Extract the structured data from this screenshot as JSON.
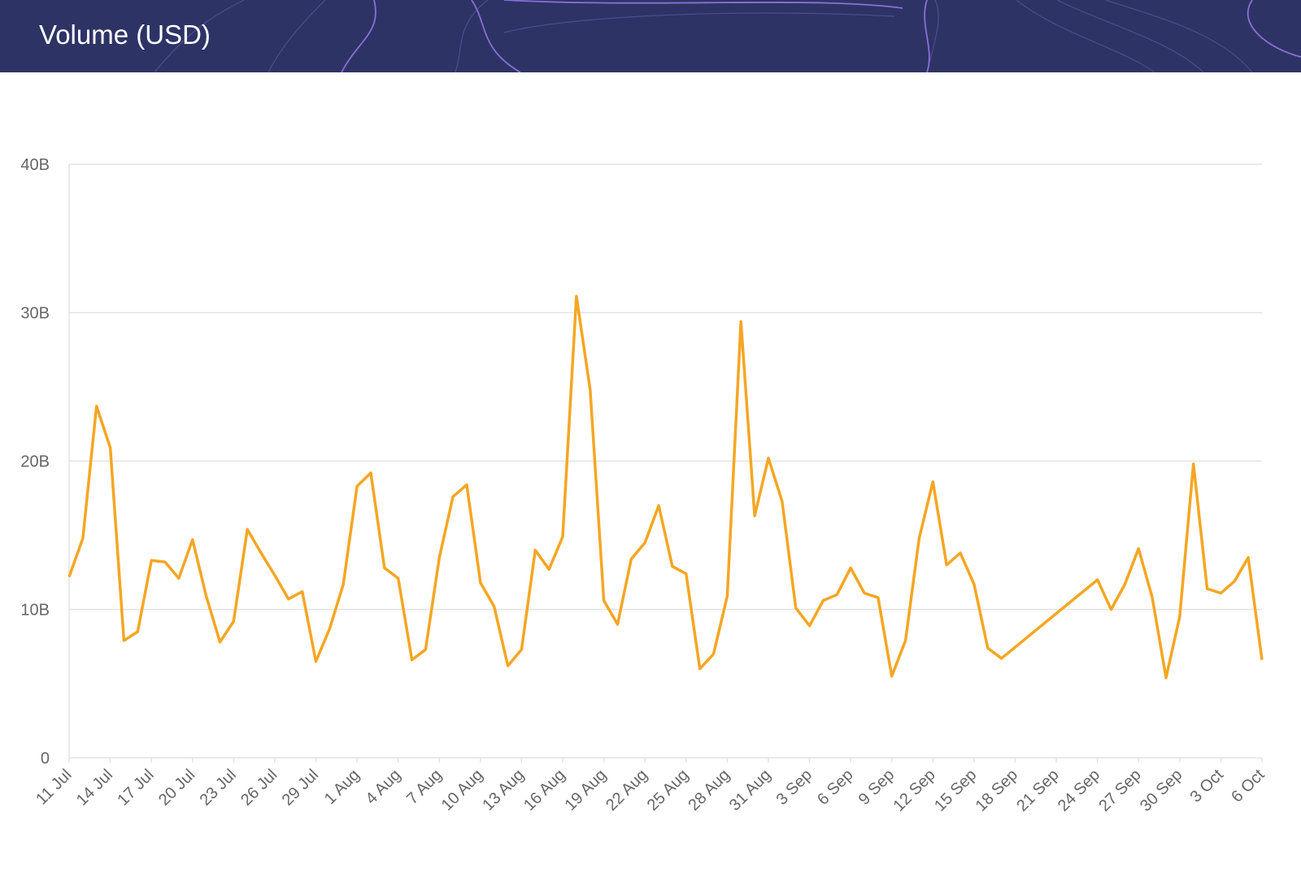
{
  "header": {
    "title": "Volume (USD)"
  },
  "chart_data": {
    "type": "line",
    "x": [
      "11 Jul",
      "12 Jul",
      "13 Jul",
      "14 Jul",
      "15 Jul",
      "16 Jul",
      "17 Jul",
      "18 Jul",
      "19 Jul",
      "20 Jul",
      "21 Jul",
      "22 Jul",
      "23 Jul",
      "24 Jul",
      "25 Jul",
      "26 Jul",
      "27 Jul",
      "28 Jul",
      "29 Jul",
      "30 Jul",
      "31 Jul",
      "1 Aug",
      "2 Aug",
      "3 Aug",
      "4 Aug",
      "5 Aug",
      "6 Aug",
      "7 Aug",
      "8 Aug",
      "9 Aug",
      "10 Aug",
      "11 Aug",
      "12 Aug",
      "13 Aug",
      "14 Aug",
      "15 Aug",
      "16 Aug",
      "17 Aug",
      "18 Aug",
      "19 Aug",
      "20 Aug",
      "21 Aug",
      "22 Aug",
      "23 Aug",
      "24 Aug",
      "25 Aug",
      "26 Aug",
      "27 Aug",
      "28 Aug",
      "29 Aug",
      "30 Aug",
      "31 Aug",
      "1 Sep",
      "2 Sep",
      "3 Sep",
      "4 Sep",
      "5 Sep",
      "6 Sep",
      "7 Sep",
      "8 Sep",
      "9 Sep",
      "10 Sep",
      "11 Sep",
      "12 Sep",
      "13 Sep",
      "14 Sep",
      "15 Sep",
      "16 Sep",
      "17 Sep",
      "24 Sep",
      "25 Sep",
      "26 Sep",
      "27 Sep",
      "28 Sep",
      "29 Sep",
      "30 Sep",
      "1 Oct",
      "2 Oct",
      "3 Oct",
      "4 Oct",
      "5 Oct",
      "6 Oct"
    ],
    "series": [
      {
        "name": "Volume",
        "color": "#f5a623",
        "values": [
          12.2,
          14.8,
          23.7,
          20.9,
          7.9,
          8.5,
          13.3,
          13.2,
          12.1,
          14.7,
          10.9,
          7.8,
          9.2,
          15.4,
          13.8,
          12.3,
          10.7,
          11.2,
          6.5,
          8.7,
          11.7,
          18.3,
          19.2,
          12.8,
          12.1,
          6.6,
          7.3,
          13.5,
          17.6,
          18.4,
          11.8,
          10.2,
          6.2,
          7.3,
          14.0,
          12.7,
          14.9,
          31.1,
          24.8,
          10.6,
          9.0,
          13.4,
          14.5,
          17.0,
          12.9,
          12.4,
          6.0,
          7.0,
          10.9,
          29.4,
          16.3,
          20.2,
          17.3,
          10.1,
          8.9,
          10.6,
          11.0,
          12.8,
          11.1,
          10.8,
          5.5,
          7.9,
          14.8,
          18.6,
          13.0,
          13.8,
          11.7,
          7.4,
          6.7,
          12.0,
          10.0,
          11.7,
          14.1,
          10.8,
          5.4,
          9.5,
          19.8,
          11.4,
          11.1,
          11.9,
          13.5,
          6.6
        ]
      }
    ],
    "xlim": [
      "11 Jul",
      "6 Oct"
    ],
    "xticks": [
      "11 Jul",
      "14 Jul",
      "17 Jul",
      "20 Jul",
      "23 Jul",
      "26 Jul",
      "29 Jul",
      "1 Aug",
      "4 Aug",
      "7 Aug",
      "10 Aug",
      "13 Aug",
      "16 Aug",
      "19 Aug",
      "22 Aug",
      "25 Aug",
      "28 Aug",
      "31 Aug",
      "3 Sep",
      "6 Sep",
      "9 Sep",
      "12 Sep",
      "15 Sep",
      "18 Sep",
      "21 Sep",
      "24 Sep",
      "27 Sep",
      "30 Sep",
      "3 Oct",
      "6 Oct"
    ],
    "ylim": [
      0,
      40
    ],
    "yticks": [
      0,
      {
        "value": 10,
        "label": "10B"
      },
      {
        "value": 20,
        "label": "20B"
      },
      {
        "value": 30,
        "label": "30B"
      },
      {
        "value": 40,
        "label": "40B"
      }
    ],
    "grid": true
  }
}
